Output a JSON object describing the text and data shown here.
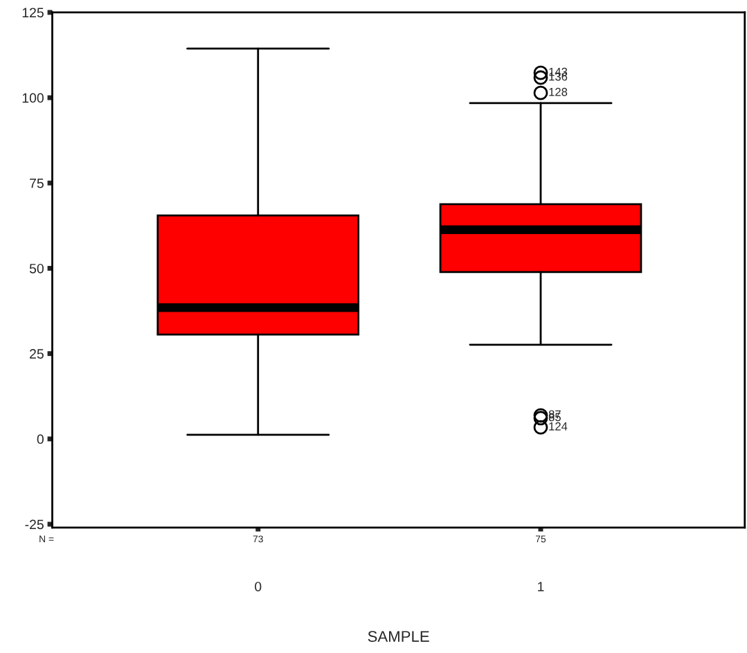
{
  "chart_data": {
    "type": "box",
    "xlabel": "SAMPLE",
    "categories": [
      "0",
      "1"
    ],
    "color": "#ff0000",
    "ylim": [
      -26,
      125
    ],
    "yticks": [
      -25,
      0,
      25,
      50,
      75,
      100,
      125
    ],
    "grid": false,
    "boxes": [
      {
        "low": 1.2,
        "q1": 30.6,
        "median": 38.5,
        "q3": 65.5,
        "high": 114.4
      },
      {
        "low": 27.6,
        "q1": 48.9,
        "median": 61.3,
        "q3": 68.8,
        "high": 98.4,
        "outliers": [
          107.3,
          105.9,
          101.4,
          6.9,
          6.1,
          3.4
        ]
      }
    ],
    "annotations": [
      "N =",
      "73",
      "75",
      "143",
      "136",
      "128",
      "87",
      "85",
      "124"
    ]
  }
}
